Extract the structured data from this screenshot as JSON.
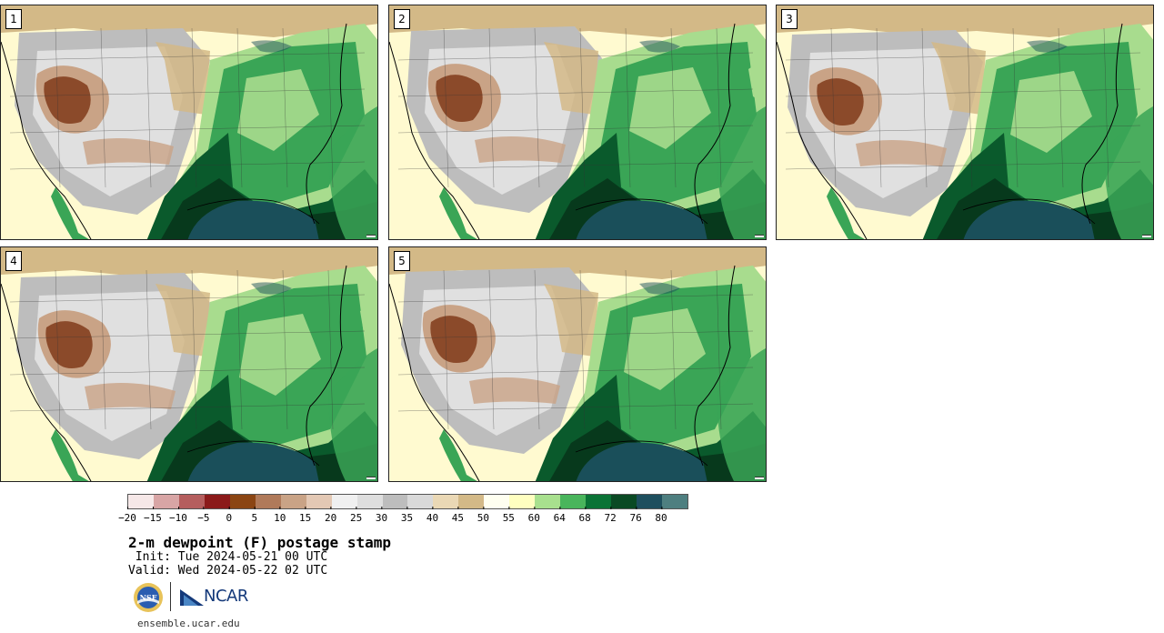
{
  "panels": [
    {
      "label": "1"
    },
    {
      "label": "2"
    },
    {
      "label": "3"
    },
    {
      "label": "4"
    },
    {
      "label": "5"
    }
  ],
  "colorbar": {
    "colors": [
      "#f6e8e8",
      "#d8a5a5",
      "#b55e5e",
      "#8b1a1a",
      "#8b4513",
      "#b07a5a",
      "#c9a386",
      "#e3c8b4",
      "#f0f0f0",
      "#dedede",
      "#bdbdbd",
      "#d9d9d9",
      "#ead8b5",
      "#d3b987",
      "#fffff0",
      "#ffffc0",
      "#a8e08e",
      "#49b55c",
      "#0a7336",
      "#0a4a24",
      "#1e4f5e",
      "#4e7f80"
    ],
    "tick_labels": [
      "−20",
      "−15",
      "−10",
      "−5",
      "0",
      "5",
      "10",
      "15",
      "20",
      "25",
      "30",
      "35",
      "40",
      "45",
      "50",
      "55",
      "60",
      "64",
      "68",
      "72",
      "76",
      "80"
    ]
  },
  "title": "2-m dewpoint (F) postage stamp",
  "init_line": " Init: Tue 2024-05-21 00 UTC",
  "valid_line": "Valid: Wed 2024-05-22 02 UTC",
  "logos": {
    "nsf": "NSF",
    "ncar": "NCAR"
  },
  "url": "ensemble.ucar.edu",
  "map_colors": {
    "ocean_gulf": "#1a4f5a",
    "ocean_deep": "#0f6b3a",
    "green_dark": "#0a5a2c",
    "green_mid": "#3aa556",
    "green_light": "#a8dc8e",
    "cream": "#fffad0",
    "tan": "#d3b987",
    "gray": "#bdbdbd",
    "brown": "#8b4a2a",
    "pink_brown": "#c9a386"
  }
}
